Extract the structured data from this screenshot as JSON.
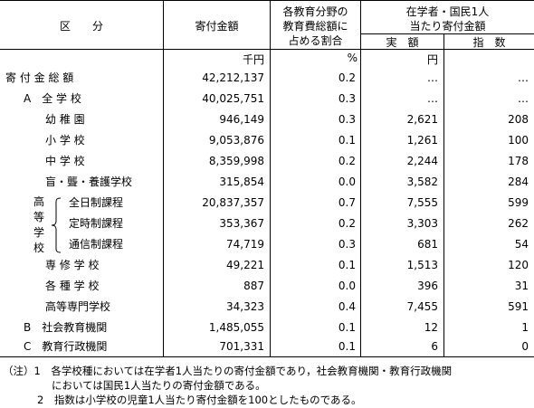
{
  "header": {
    "category": "区　　分",
    "amount": "寄付金額",
    "ratio_line1": "各教育分野の",
    "ratio_line2": "教育費総額に",
    "ratio_line3": "占める割合",
    "per_line1": "在学者・国民1人",
    "per_line2": "当たり寄付金額",
    "actual": "実　額",
    "index": "指　数"
  },
  "units": {
    "amount": "千円",
    "ratio": "%",
    "actual": "円"
  },
  "rows": [
    {
      "label": "寄 付 金 総 額",
      "amount": "42,212,137",
      "ratio": "0.2",
      "actual": "…",
      "index": "…"
    },
    {
      "label": "A　全 学 校",
      "amount": "40,025,751",
      "ratio": "0.3",
      "actual": "…",
      "index": "…"
    },
    {
      "label": "幼 稚 園",
      "amount": "946,149",
      "ratio": "0.3",
      "actual": "2,621",
      "index": "208"
    },
    {
      "label": "小 学 校",
      "amount": "9,053,876",
      "ratio": "0.1",
      "actual": "1,261",
      "index": "100"
    },
    {
      "label": "中 学 校",
      "amount": "8,359,998",
      "ratio": "0.2",
      "actual": "2,244",
      "index": "178"
    },
    {
      "label": "盲・聾・養護学校",
      "amount": "315,854",
      "ratio": "0.0",
      "actual": "3,582",
      "index": "284"
    },
    {
      "label": "全日制課程",
      "amount": "20,837,357",
      "ratio": "0.7",
      "actual": "7,555",
      "index": "599"
    },
    {
      "label": "定時制課程",
      "amount": "353,367",
      "ratio": "0.2",
      "actual": "3,303",
      "index": "262"
    },
    {
      "label": "通信制課程",
      "amount": "74,719",
      "ratio": "0.3",
      "actual": "681",
      "index": "54"
    },
    {
      "label": "専 修 学 校",
      "amount": "49,221",
      "ratio": "0.1",
      "actual": "1,513",
      "index": "120"
    },
    {
      "label": "各 種 学 校",
      "amount": "887",
      "ratio": "0.0",
      "actual": "396",
      "index": "31"
    },
    {
      "label": "高等専門学校",
      "amount": "34,323",
      "ratio": "0.4",
      "actual": "7,455",
      "index": "591"
    },
    {
      "label": "B　社会教育機関",
      "amount": "1,485,055",
      "ratio": "0.1",
      "actual": "12",
      "index": "1"
    },
    {
      "label": "C　教育行政機関",
      "amount": "701,331",
      "ratio": "0.1",
      "actual": "6",
      "index": "0"
    }
  ],
  "high_school_label": [
    "高",
    "等",
    "学",
    "校"
  ],
  "notes": {
    "line1": "（注）1　各学校種においては在学者1人当たりの寄付金額であり，社会教育機関・教育行政機関",
    "line2": "においては国民1人当たりの寄付金額である。",
    "line3": "2　指数は小学校の児童1人当たり寄付金額を100としたものである。"
  }
}
